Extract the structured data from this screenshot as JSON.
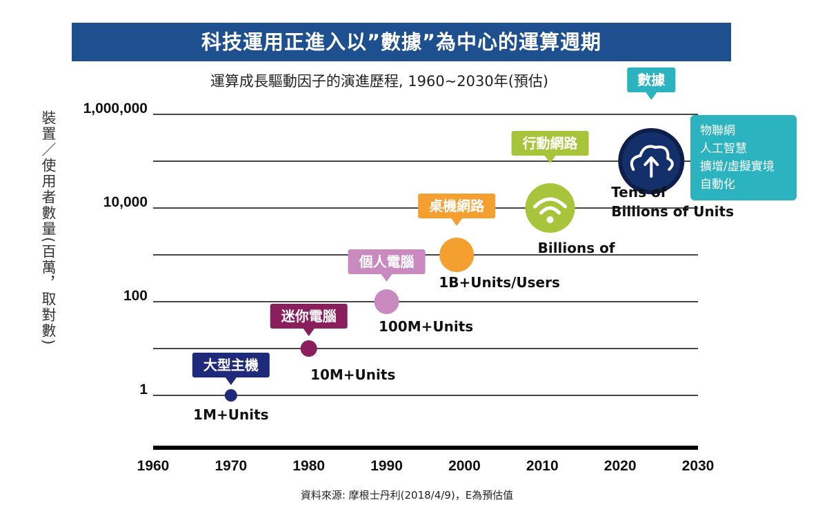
{
  "banner": {
    "title": "科技運用正進入以”數據”為中心的運算週期"
  },
  "source": "資料來源: 摩根士丹利(2018/4/9)，E為預估值",
  "info_box": {
    "lines": [
      "物聯網",
      "人工智慧",
      "擴增/虛擬實境",
      "自動化"
    ]
  },
  "chart_data": {
    "type": "scatter",
    "title": "",
    "subtitle": "運算成長驅動因子的演進歷程, 1960~2030年(預估)",
    "xlabel": "",
    "ylabel": "裝置／使用者數量(百萬，取對數)",
    "y_scale": "log",
    "xlim": [
      1960,
      2030
    ],
    "ylim": [
      0.1,
      1000000
    ],
    "x_ticks": [
      "1960",
      "1970",
      "1980",
      "1990",
      "2000",
      "2010",
      "2020",
      "2030"
    ],
    "y_ticks": [
      "1",
      "100",
      "10,000",
      "1,000,000"
    ],
    "grid": true,
    "points": [
      {
        "x": 1970,
        "y": 1,
        "tag": "大型主機",
        "label": "1M+Units",
        "color": "#1f2a7a"
      },
      {
        "x": 1980,
        "y": 10,
        "tag": "迷你電腦",
        "label": "10M+Units",
        "color": "#8a1f5e"
      },
      {
        "x": 1990,
        "y": 100,
        "tag": "個人電腦",
        "label": "100M+Units",
        "color": "#c98bbf"
      },
      {
        "x": 1999,
        "y": 1000,
        "tag": "桌機網路",
        "label": "1B+Units/Users",
        "color": "#f4a030"
      },
      {
        "x": 2011,
        "y": 10000,
        "tag": "行動網路",
        "label": "Billions of",
        "color": "#a8c43a"
      },
      {
        "x": 2024,
        "y": 100000,
        "tag": "數據",
        "label_lines": [
          "Tens of",
          "Billions of Units"
        ],
        "color": "#2bb3c0"
      }
    ]
  }
}
